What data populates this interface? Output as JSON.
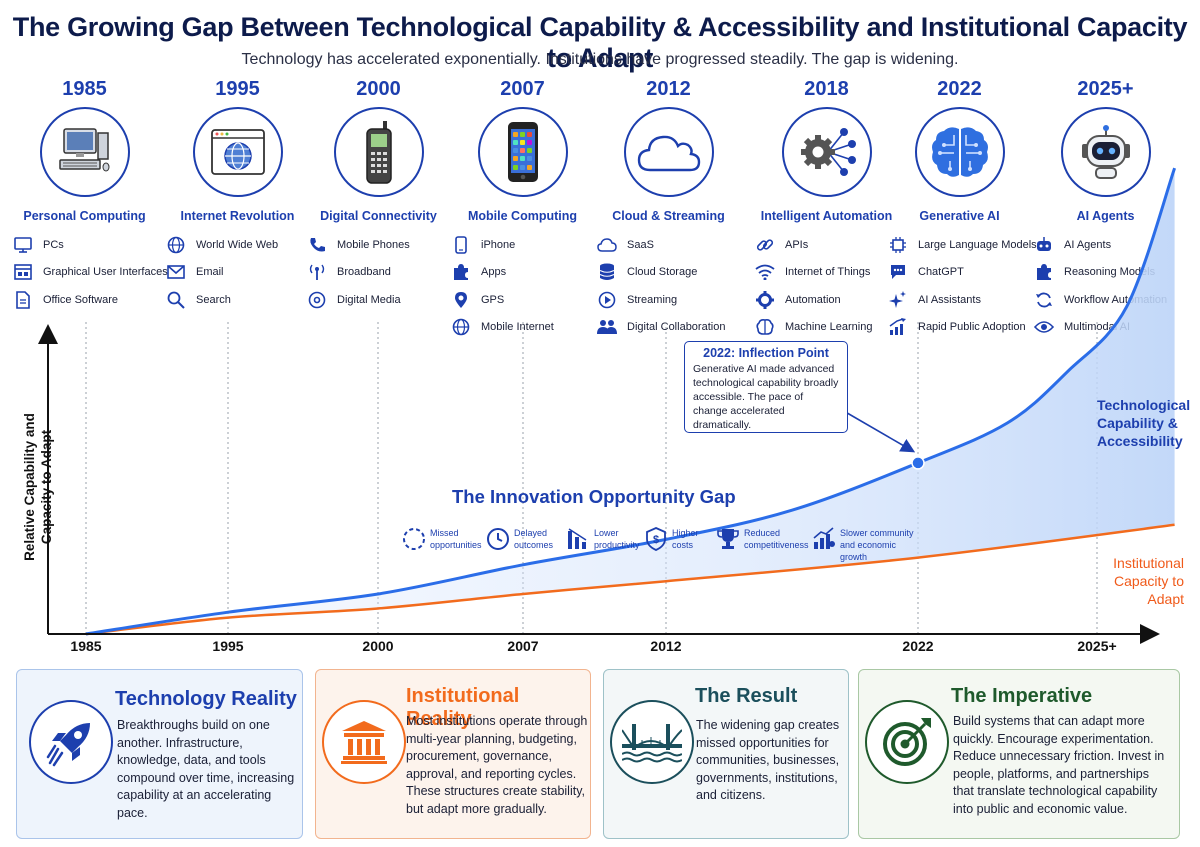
{
  "header": {
    "title": "The Growing Gap Between Technological Capability & Accessibility and Institutional Capacity to Adapt",
    "subtitle": "Technology has accelerated exponentially. Institutions have progressed steadily. The gap is widening."
  },
  "colors": {
    "accent": "#1d3fae",
    "tech_line": "#2b6de8",
    "inst_line": "#f26b1d",
    "result": "#1b4f5c",
    "imperative": "#1f5a2c"
  },
  "eras": [
    {
      "year": "1985",
      "name": "Personal Computing",
      "icon": "computer-icon",
      "items": [
        {
          "label": "PCs",
          "icon": "monitor-icon"
        },
        {
          "label": "Graphical User Interfaces",
          "icon": "window-icon"
        },
        {
          "label": "Office Software",
          "icon": "document-icon"
        }
      ]
    },
    {
      "year": "1995",
      "name": "Internet Revolution",
      "icon": "browser-globe-icon",
      "items": [
        {
          "label": "World Wide Web",
          "icon": "globe-icon"
        },
        {
          "label": "Email",
          "icon": "envelope-icon"
        },
        {
          "label": "Search",
          "icon": "search-icon"
        }
      ]
    },
    {
      "year": "2000",
      "name": "Digital Connectivity",
      "icon": "cellphone-icon",
      "items": [
        {
          "label": "Mobile Phones",
          "icon": "phone-icon"
        },
        {
          "label": "Broadband",
          "icon": "antenna-icon"
        },
        {
          "label": "Digital Media",
          "icon": "disc-icon"
        }
      ]
    },
    {
      "year": "2007",
      "name": "Mobile Computing",
      "icon": "smartphone-icon",
      "items": [
        {
          "label": "iPhone",
          "icon": "iphone-icon"
        },
        {
          "label": "Apps",
          "icon": "puzzle-icon"
        },
        {
          "label": "GPS",
          "icon": "location-pin-icon"
        },
        {
          "label": "Mobile Internet",
          "icon": "globe-icon"
        }
      ]
    },
    {
      "year": "2012",
      "name": "Cloud & Streaming",
      "icon": "cloud-icon",
      "items": [
        {
          "label": "SaaS",
          "icon": "cloud-icon"
        },
        {
          "label": "Cloud Storage",
          "icon": "database-icon"
        },
        {
          "label": "Streaming",
          "icon": "play-icon"
        },
        {
          "label": "Digital Collaboration",
          "icon": "people-icon"
        }
      ]
    },
    {
      "year": "2018",
      "name": "Intelligent Automation",
      "icon": "gear-network-icon",
      "items": [
        {
          "label": "APIs",
          "icon": "link-icon"
        },
        {
          "label": "Internet of Things",
          "icon": "wifi-icon"
        },
        {
          "label": "Automation",
          "icon": "gear-icon"
        },
        {
          "label": "Machine Learning",
          "icon": "brain-icon"
        }
      ]
    },
    {
      "year": "2022",
      "name": "Generative AI",
      "icon": "ai-brain-icon",
      "items": [
        {
          "label": "Large Language Models",
          "icon": "chip-icon"
        },
        {
          "label": "ChatGPT",
          "icon": "chat-icon"
        },
        {
          "label": "AI Assistants",
          "icon": "sparkle-icon"
        },
        {
          "label": "Rapid Public Adoption",
          "icon": "trend-up-icon"
        }
      ]
    },
    {
      "year": "2025+",
      "name": "AI Agents",
      "icon": "robot-icon",
      "items": [
        {
          "label": "AI Agents",
          "icon": "robot-icon"
        },
        {
          "label": "Reasoning Models",
          "icon": "puzzle-icon"
        },
        {
          "label": "Workflow Automation",
          "icon": "refresh-icon"
        },
        {
          "label": "Multimodal AI",
          "icon": "eye-icon"
        }
      ]
    }
  ],
  "chart_data": {
    "type": "line",
    "ylabel": "Relative Capability and Capacity to Adapt",
    "x_ticks": [
      "1985",
      "1995",
      "2000",
      "2007",
      "2012",
      "2022",
      "2025+"
    ],
    "series": [
      {
        "name": "Technological Capability & Accessibility",
        "shape": "exponential, accelerating sharply after 2022"
      },
      {
        "name": "Institutional Capacity to Adapt",
        "shape": "steady, gradual increase"
      }
    ],
    "x_ticks_values": [
      1985,
      1995,
      2000,
      2007,
      2012,
      2022,
      2025
    ],
    "tech_values": [
      [
        1985,
        0.0
      ],
      [
        1995,
        0.06
      ],
      [
        2000,
        0.11
      ],
      [
        2007,
        0.19
      ],
      [
        2012,
        0.26
      ],
      [
        2017,
        0.34
      ],
      [
        2022,
        0.47
      ],
      [
        2023.5,
        0.58
      ],
      [
        2024.5,
        0.72
      ],
      [
        2025.5,
        0.9
      ],
      [
        2026.3,
        1.28
      ]
    ],
    "inst_values": [
      [
        1985,
        0.0
      ],
      [
        1995,
        0.045
      ],
      [
        2000,
        0.07
      ],
      [
        2007,
        0.11
      ],
      [
        2012,
        0.145
      ],
      [
        2022,
        0.21
      ],
      [
        2026.3,
        0.3
      ]
    ],
    "highlight_point": [
      2022,
      0.47
    ],
    "series_labels": {
      "tech": "Technological Capability & Accessibility",
      "inst": "Institutional Capacity to Adapt"
    }
  },
  "callout": {
    "title": "2022: Inflection Point",
    "body": "Generative AI made advanced technological capability broadly accessible. The pace of change accelerated dramatically."
  },
  "gap": {
    "title": "The Innovation Opportunity Gap",
    "items": [
      {
        "label": "Missed opportunities",
        "icon": "dashed-circle-icon"
      },
      {
        "label": "Delayed outcomes",
        "icon": "clock-icon"
      },
      {
        "label": "Lower productivity",
        "icon": "bar-chart-down-icon"
      },
      {
        "label": "Higher costs",
        "icon": "dollar-shield-icon"
      },
      {
        "label": "Reduced competitiveness",
        "icon": "trophy-icon"
      },
      {
        "label": "Slower community and economic growth",
        "icon": "growth-chart-icon"
      }
    ]
  },
  "labels": {
    "tech_line": [
      "Technological",
      "Capability &",
      "Accessibility"
    ],
    "inst_line": [
      "Institutional",
      "Capacity to Adapt"
    ]
  },
  "cards": [
    {
      "title": "Technology Reality",
      "icon": "rocket-icon",
      "text": "Breakthroughs build on one another. Infrastructure, knowledge, data, and tools compound over time, increasing capability at an accelerating pace."
    },
    {
      "title": "Institutional Reality",
      "icon": "institution-icon",
      "text": "Most institutions operate through multi-year planning, budgeting, procurement, governance, approval, and reporting cycles. These structures create stability, but adapt more gradually."
    },
    {
      "title": "The Result",
      "icon": "bridge-icon",
      "text": "The widening gap creates missed opportunities for communities, businesses, governments, institutions, and citizens."
    },
    {
      "title": "The Imperative",
      "icon": "target-icon",
      "text": "Build systems that can adapt more quickly. Encourage experimentation. Reduce unnecessary friction. Invest in people, platforms, and partnerships that translate technological capability into public and economic value."
    }
  ]
}
